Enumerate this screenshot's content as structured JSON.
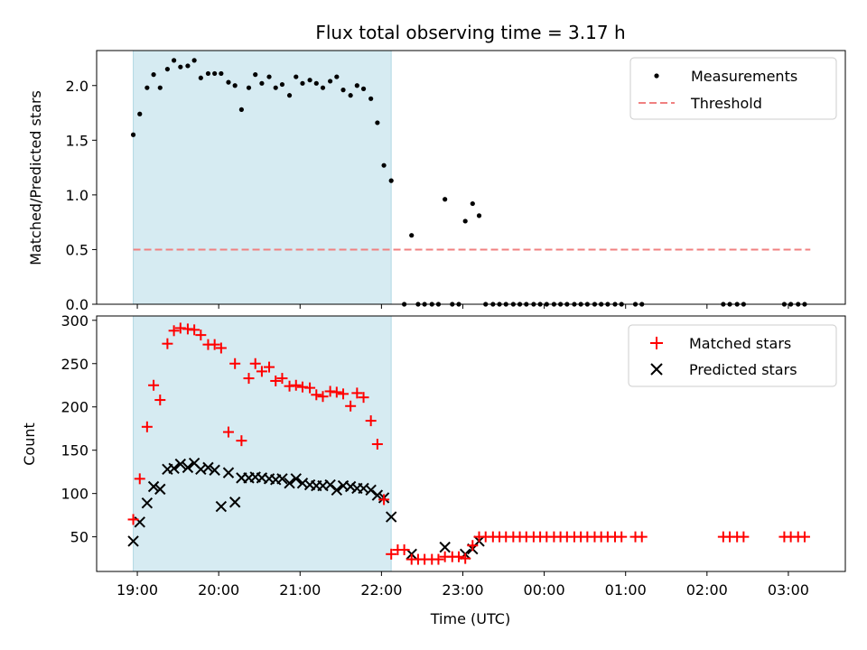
{
  "chart_data": [
    {
      "type": "scatter",
      "title": "Flux total observing time = 3.17 h",
      "ylabel": "Matched/Predicted stars",
      "xlim": [
        18.5,
        27.7
      ],
      "ylim": [
        0,
        2.32
      ],
      "yticks": [
        0.0,
        0.5,
        1.0,
        1.5,
        2.0
      ],
      "ytick_labels": [
        "0.0",
        "0.5",
        "1.0",
        "1.5",
        "2.0"
      ],
      "shaded_span": [
        18.95,
        22.12
      ],
      "legend_position": "top-right",
      "legend": [
        "Measurements",
        "Threshold"
      ],
      "threshold": {
        "x": [
          18.95,
          27.27
        ],
        "y": 0.5,
        "color": "#f08080"
      },
      "series": [
        {
          "name": "Measurements",
          "color": "#000000",
          "x": [
            18.95,
            19.03,
            19.12,
            19.2,
            19.28,
            19.37,
            19.45,
            19.53,
            19.62,
            19.7,
            19.78,
            19.87,
            19.95,
            20.03,
            20.12,
            20.2,
            20.28,
            20.37,
            20.45,
            20.53,
            20.62,
            20.7,
            20.78,
            20.87,
            20.95,
            21.03,
            21.12,
            21.2,
            21.28,
            21.37,
            21.45,
            21.53,
            21.62,
            21.7,
            21.78,
            21.87,
            21.95,
            22.03,
            22.12,
            22.28,
            22.37,
            22.45,
            22.53,
            22.62,
            22.7,
            22.78,
            22.87,
            22.95,
            23.03,
            23.12,
            23.2,
            23.28,
            23.37,
            23.45,
            23.53,
            23.62,
            23.7,
            23.78,
            23.87,
            23.95,
            24.03,
            24.12,
            24.2,
            24.28,
            24.37,
            24.45,
            24.53,
            24.62,
            24.7,
            24.78,
            24.87,
            24.95,
            25.12,
            25.2,
            26.2,
            26.28,
            26.37,
            26.45,
            26.95,
            27.03,
            27.12,
            27.2
          ],
          "y": [
            1.55,
            1.74,
            1.98,
            2.1,
            1.98,
            2.15,
            2.23,
            2.17,
            2.18,
            2.23,
            2.07,
            2.11,
            2.11,
            2.11,
            2.03,
            2.0,
            1.78,
            1.98,
            2.1,
            2.02,
            2.08,
            1.98,
            2.01,
            1.91,
            2.08,
            2.02,
            2.05,
            2.02,
            1.98,
            2.04,
            2.08,
            1.96,
            1.91,
            2.0,
            1.97,
            1.88,
            1.66,
            1.27,
            1.13,
            0.0,
            0.63,
            0.0,
            0.0,
            0.0,
            0.0,
            0.96,
            0.0,
            0.0,
            0.76,
            0.92,
            0.81,
            0.0,
            0.0,
            0.0,
            0.0,
            0.0,
            0.0,
            0.0,
            0.0,
            0.0,
            0.0,
            0.0,
            0.0,
            0.0,
            0.0,
            0.0,
            0.0,
            0.0,
            0.0,
            0.0,
            0.0,
            0.0,
            0.0,
            0.0,
            0.0,
            0.0,
            0.0,
            0.0,
            0.0,
            0.0,
            0.0,
            0.0
          ]
        }
      ]
    },
    {
      "type": "scatter",
      "xlabel": "Time (UTC)",
      "ylabel": "Count",
      "xlim": [
        18.5,
        27.7
      ],
      "ylim": [
        10,
        305
      ],
      "yticks": [
        50,
        100,
        150,
        200,
        250,
        300
      ],
      "xticks": [
        19,
        20,
        21,
        22,
        23,
        24,
        25,
        26,
        27
      ],
      "xtick_labels": [
        "19:00",
        "20:00",
        "21:00",
        "22:00",
        "23:00",
        "00:00",
        "01:00",
        "02:00",
        "03:00"
      ],
      "shaded_span": [
        18.95,
        22.12
      ],
      "legend_position": "top-right",
      "legend": [
        "Matched stars",
        "Predicted stars"
      ],
      "series": [
        {
          "name": "Matched stars",
          "color": "#ff0000",
          "marker": "plus",
          "x": [
            18.95,
            19.03,
            19.12,
            19.2,
            19.28,
            19.37,
            19.45,
            19.53,
            19.62,
            19.7,
            19.78,
            19.87,
            19.95,
            20.03,
            20.12,
            20.2,
            20.28,
            20.37,
            20.45,
            20.53,
            20.62,
            20.7,
            20.78,
            20.87,
            20.95,
            21.03,
            21.12,
            21.2,
            21.28,
            21.37,
            21.45,
            21.53,
            21.62,
            21.7,
            21.78,
            21.87,
            21.95,
            22.03,
            22.12,
            22.2,
            22.28,
            22.37,
            22.45,
            22.53,
            22.62,
            22.7,
            22.78,
            22.87,
            22.95,
            23.03,
            23.12,
            23.2,
            23.28,
            23.37,
            23.45,
            23.53,
            23.62,
            23.7,
            23.78,
            23.87,
            23.95,
            24.03,
            24.12,
            24.2,
            24.28,
            24.37,
            24.45,
            24.53,
            24.62,
            24.7,
            24.78,
            24.87,
            24.95,
            25.12,
            25.2,
            26.2,
            26.28,
            26.37,
            26.45,
            26.95,
            27.03,
            27.12,
            27.2
          ],
          "y": [
            70,
            117,
            177,
            225,
            208,
            273,
            288,
            291,
            290,
            289,
            283,
            272,
            272,
            268,
            171,
            250,
            161,
            233,
            250,
            241,
            246,
            230,
            233,
            224,
            225,
            223,
            222,
            214,
            212,
            218,
            217,
            215,
            201,
            216,
            211,
            184,
            157,
            93,
            30,
            35,
            35,
            24,
            24,
            24,
            24,
            24,
            27,
            27,
            27,
            25,
            40,
            50,
            50,
            50,
            50,
            50,
            50,
            50,
            50,
            50,
            50,
            50,
            50,
            50,
            50,
            50,
            50,
            50,
            50,
            50,
            50,
            50,
            50,
            50,
            50,
            50,
            50,
            50,
            50,
            50,
            50,
            50,
            50
          ]
        },
        {
          "name": "Predicted stars",
          "color": "#000000",
          "marker": "x",
          "x": [
            18.95,
            19.03,
            19.12,
            19.2,
            19.28,
            19.37,
            19.45,
            19.53,
            19.62,
            19.7,
            19.78,
            19.87,
            19.95,
            20.03,
            20.12,
            20.2,
            20.28,
            20.37,
            20.45,
            20.53,
            20.62,
            20.7,
            20.78,
            20.87,
            20.95,
            21.03,
            21.12,
            21.2,
            21.28,
            21.37,
            21.45,
            21.53,
            21.62,
            21.7,
            21.78,
            21.87,
            21.95,
            22.03,
            22.12,
            22.37,
            22.78,
            23.03,
            23.12,
            23.2
          ],
          "y": [
            45,
            67,
            89,
            108,
            105,
            128,
            129,
            134,
            130,
            135,
            128,
            130,
            127,
            85,
            124,
            90,
            118,
            118,
            119,
            118,
            117,
            116,
            117,
            112,
            117,
            112,
            110,
            109,
            109,
            110,
            104,
            109,
            108,
            106,
            106,
            104,
            98,
            95,
            73,
            30,
            38,
            30,
            36,
            45
          ]
        }
      ]
    }
  ]
}
